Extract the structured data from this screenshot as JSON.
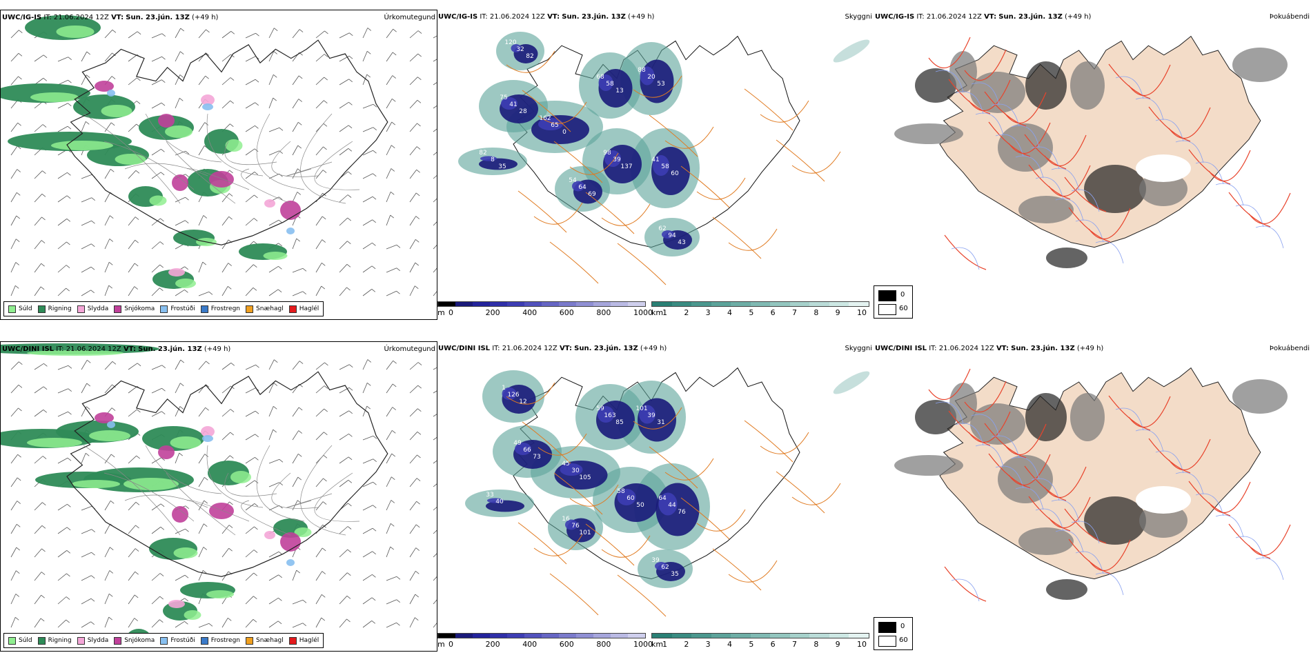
{
  "rows": [
    {
      "model": "UWC/IG-IS",
      "it_label": "IT:",
      "it_value": "21.06.2024 12Z",
      "vt_label": "VT:",
      "vt_value": "Sun. 23.jún. 13Z",
      "lead": "(+49 h)"
    },
    {
      "model": "UWC/DINI ISL",
      "it_label": "IT:",
      "it_value": "21.06.2024 12Z",
      "vt_label": "VT:",
      "vt_value": "Sun. 23.jún. 13Z",
      "lead": "(+49 h)"
    }
  ],
  "panel_titles": {
    "precip": "Úrkomutegund",
    "visibility": "Skyggni",
    "fog": "Þokuábendi"
  },
  "precip_legend": [
    {
      "label": "Súld",
      "color": "#90ee90"
    },
    {
      "label": "Rigning",
      "color": "#2e8b57"
    },
    {
      "label": "Slydda",
      "color": "#f4a6d7"
    },
    {
      "label": "Snjókoma",
      "color": "#c0409a"
    },
    {
      "label": "Frostúði",
      "color": "#87bfef"
    },
    {
      "label": "Frostregn",
      "color": "#3a7ac8"
    },
    {
      "label": "Snæhagl",
      "color": "#f0a020"
    },
    {
      "label": "Haglél",
      "color": "#e31a1c"
    }
  ],
  "cloud_base_bar": {
    "unit": "m",
    "ticks": [
      "0",
      "200",
      "400",
      "600",
      "800",
      "1000"
    ],
    "colors": [
      "#000000",
      "#1a1a7a",
      "#23239b",
      "#2f2fa8",
      "#3d3db3",
      "#5252bd",
      "#6666c4",
      "#7b7bcc",
      "#9090d4",
      "#a6a6dc",
      "#babae4",
      "#cfcfed"
    ]
  },
  "visibility_bar": {
    "unit": "km",
    "ticks": [
      "1",
      "2",
      "3",
      "4",
      "5",
      "6",
      "7",
      "8",
      "9",
      "10"
    ],
    "colors": [
      "#2a8075",
      "#3a8c82",
      "#4b978e",
      "#5ca39a",
      "#6eaea6",
      "#80bab3",
      "#93c6bf",
      "#a6d1cb",
      "#badcd8",
      "#cde8e4",
      "#e4f3f1"
    ]
  },
  "fog_legend": {
    "dark_value": "0",
    "light_value": "60"
  },
  "cloud_labels_top": [
    "120",
    "32",
    "82",
    "75",
    "41",
    "28",
    "162",
    "65",
    "0",
    "68",
    "58",
    "13",
    "88",
    "20",
    "53",
    "98",
    "39",
    "137",
    "41",
    "58",
    "60",
    "54",
    "64",
    "69",
    "62",
    "94",
    "43",
    "82",
    "8",
    "35",
    "39"
  ],
  "cloud_labels_bottom": [
    "1",
    "126",
    "12",
    "49",
    "66",
    "73",
    "45",
    "30",
    "105",
    "59",
    "163",
    "85",
    "101",
    "39",
    "31",
    "58",
    "60",
    "50",
    "64",
    "44",
    "76",
    "16",
    "76",
    "101",
    "39",
    "62",
    "35",
    "33",
    "40"
  ]
}
